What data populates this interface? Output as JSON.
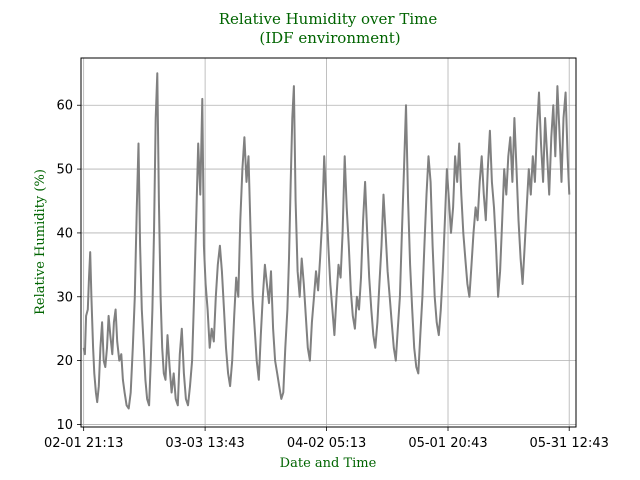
{
  "chart_data": {
    "type": "line",
    "title": "Relative Humidity over Time",
    "subtitle": "(IDF environment)",
    "xlabel": "Date and Time",
    "ylabel": "Relative Humidity (%)",
    "title_color": "#006400",
    "line_color": "#808080",
    "grid": true,
    "legend": "none",
    "x_ticks": [
      "02-01 21:13",
      "03-03 13:43",
      "04-02 05:13",
      "05-01 20:43",
      "05-31 12:43"
    ],
    "y_ticks": [
      "10",
      "20",
      "30",
      "40",
      "50",
      "60"
    ],
    "ylim": [
      9.6,
      67.4
    ],
    "xlim_days": [
      -0.65,
      120.35
    ],
    "x_tick_days": [
      0,
      29.6875,
      59.375,
      89.0625,
      118.6875
    ],
    "y_tick_values": [
      10,
      20,
      30,
      40,
      50,
      60
    ],
    "series": [
      {
        "points": [
          [
            0.0,
            22
          ],
          [
            0.3,
            21
          ],
          [
            0.6,
            27
          ],
          [
            1.0,
            28
          ],
          [
            1.3,
            33
          ],
          [
            1.6,
            37
          ],
          [
            1.9,
            30
          ],
          [
            2.3,
            22
          ],
          [
            2.6,
            18
          ],
          [
            3.0,
            15
          ],
          [
            3.3,
            13.5
          ],
          [
            3.7,
            16
          ],
          [
            4.1,
            22
          ],
          [
            4.5,
            26
          ],
          [
            4.9,
            20
          ],
          [
            5.3,
            19
          ],
          [
            5.7,
            22
          ],
          [
            6.1,
            27
          ],
          [
            6.5,
            24
          ],
          [
            7.0,
            21
          ],
          [
            7.4,
            26
          ],
          [
            7.8,
            28
          ],
          [
            8.2,
            23
          ],
          [
            8.7,
            20
          ],
          [
            9.2,
            21
          ],
          [
            9.6,
            17
          ],
          [
            10.0,
            15
          ],
          [
            10.5,
            13
          ],
          [
            11.0,
            12.5
          ],
          [
            11.5,
            15
          ],
          [
            12.0,
            22
          ],
          [
            12.5,
            30
          ],
          [
            13.0,
            44
          ],
          [
            13.4,
            54
          ],
          [
            13.8,
            38
          ],
          [
            14.2,
            28
          ],
          [
            14.7,
            22
          ],
          [
            15.1,
            17
          ],
          [
            15.5,
            14
          ],
          [
            16.0,
            13
          ],
          [
            16.4,
            20
          ],
          [
            16.8,
            28
          ],
          [
            17.2,
            40
          ],
          [
            17.6,
            58
          ],
          [
            18.0,
            65
          ],
          [
            18.4,
            45
          ],
          [
            18.8,
            30
          ],
          [
            19.2,
            22
          ],
          [
            19.6,
            18
          ],
          [
            20.0,
            17
          ],
          [
            20.5,
            24
          ],
          [
            21.0,
            19
          ],
          [
            21.5,
            15
          ],
          [
            22.0,
            18
          ],
          [
            22.5,
            14
          ],
          [
            23.0,
            13
          ],
          [
            23.5,
            21
          ],
          [
            24.0,
            25
          ],
          [
            24.5,
            18
          ],
          [
            25.0,
            14
          ],
          [
            25.5,
            13
          ],
          [
            26.0,
            16
          ],
          [
            26.5,
            20
          ],
          [
            27.0,
            30
          ],
          [
            27.5,
            42
          ],
          [
            28.0,
            54
          ],
          [
            28.5,
            46
          ],
          [
            29.0,
            61
          ],
          [
            29.4,
            38
          ],
          [
            29.8,
            32
          ],
          [
            30.3,
            28
          ],
          [
            30.8,
            22
          ],
          [
            31.3,
            25
          ],
          [
            31.8,
            23
          ],
          [
            32.3,
            30
          ],
          [
            32.8,
            35
          ],
          [
            33.3,
            38
          ],
          [
            33.8,
            34
          ],
          [
            34.3,
            28
          ],
          [
            34.8,
            22
          ],
          [
            35.3,
            18
          ],
          [
            35.8,
            16
          ],
          [
            36.3,
            20
          ],
          [
            36.8,
            27
          ],
          [
            37.3,
            33
          ],
          [
            37.8,
            30
          ],
          [
            38.3,
            42
          ],
          [
            38.8,
            50
          ],
          [
            39.3,
            55
          ],
          [
            39.8,
            48
          ],
          [
            40.3,
            52
          ],
          [
            40.8,
            40
          ],
          [
            41.3,
            30
          ],
          [
            41.8,
            25
          ],
          [
            42.3,
            20
          ],
          [
            42.8,
            17
          ],
          [
            43.3,
            24
          ],
          [
            43.8,
            30
          ],
          [
            44.3,
            35
          ],
          [
            44.8,
            32
          ],
          [
            45.3,
            29
          ],
          [
            45.8,
            34
          ],
          [
            46.3,
            25
          ],
          [
            46.8,
            20
          ],
          [
            47.3,
            18
          ],
          [
            47.8,
            16
          ],
          [
            48.3,
            14
          ],
          [
            48.8,
            15
          ],
          [
            49.3,
            22
          ],
          [
            49.8,
            28
          ],
          [
            50.2,
            36
          ],
          [
            50.6,
            48
          ],
          [
            51.0,
            58
          ],
          [
            51.4,
            63
          ],
          [
            51.8,
            45
          ],
          [
            52.3,
            34
          ],
          [
            52.8,
            30
          ],
          [
            53.3,
            36
          ],
          [
            53.8,
            32
          ],
          [
            54.3,
            27
          ],
          [
            54.8,
            22
          ],
          [
            55.3,
            20
          ],
          [
            55.8,
            26
          ],
          [
            56.3,
            30
          ],
          [
            56.8,
            34
          ],
          [
            57.3,
            31
          ],
          [
            57.8,
            36
          ],
          [
            58.3,
            42
          ],
          [
            58.8,
            52
          ],
          [
            59.3,
            45
          ],
          [
            59.8,
            38
          ],
          [
            60.3,
            32
          ],
          [
            60.8,
            28
          ],
          [
            61.3,
            24
          ],
          [
            61.8,
            30
          ],
          [
            62.3,
            35
          ],
          [
            62.8,
            33
          ],
          [
            63.3,
            40
          ],
          [
            63.8,
            52
          ],
          [
            64.3,
            44
          ],
          [
            64.8,
            38
          ],
          [
            65.3,
            31
          ],
          [
            65.8,
            27
          ],
          [
            66.3,
            25
          ],
          [
            66.8,
            30
          ],
          [
            67.3,
            28
          ],
          [
            67.8,
            33
          ],
          [
            68.3,
            42
          ],
          [
            68.8,
            48
          ],
          [
            69.3,
            40
          ],
          [
            69.8,
            33
          ],
          [
            70.3,
            28
          ],
          [
            70.8,
            24
          ],
          [
            71.3,
            22
          ],
          [
            71.8,
            26
          ],
          [
            72.3,
            32
          ],
          [
            72.8,
            38
          ],
          [
            73.3,
            46
          ],
          [
            73.8,
            40
          ],
          [
            74.3,
            34
          ],
          [
            74.8,
            30
          ],
          [
            75.3,
            26
          ],
          [
            75.8,
            22
          ],
          [
            76.3,
            20
          ],
          [
            76.8,
            25
          ],
          [
            77.3,
            30
          ],
          [
            77.8,
            40
          ],
          [
            78.3,
            50
          ],
          [
            78.8,
            60
          ],
          [
            79.3,
            45
          ],
          [
            79.8,
            35
          ],
          [
            80.3,
            28
          ],
          [
            80.8,
            22
          ],
          [
            81.3,
            19
          ],
          [
            81.8,
            18
          ],
          [
            82.3,
            24
          ],
          [
            82.8,
            30
          ],
          [
            83.3,
            38
          ],
          [
            83.8,
            46
          ],
          [
            84.3,
            52
          ],
          [
            84.8,
            48
          ],
          [
            85.3,
            38
          ],
          [
            85.8,
            30
          ],
          [
            86.3,
            26
          ],
          [
            86.8,
            24
          ],
          [
            87.3,
            28
          ],
          [
            87.8,
            34
          ],
          [
            88.3,
            42
          ],
          [
            88.8,
            50
          ],
          [
            89.3,
            45
          ],
          [
            89.8,
            40
          ],
          [
            90.3,
            44
          ],
          [
            90.8,
            52
          ],
          [
            91.3,
            48
          ],
          [
            91.8,
            54
          ],
          [
            92.3,
            46
          ],
          [
            92.8,
            40
          ],
          [
            93.3,
            36
          ],
          [
            93.8,
            32
          ],
          [
            94.3,
            30
          ],
          [
            94.8,
            35
          ],
          [
            95.3,
            40
          ],
          [
            95.8,
            44
          ],
          [
            96.3,
            42
          ],
          [
            96.8,
            48
          ],
          [
            97.3,
            52
          ],
          [
            97.8,
            46
          ],
          [
            98.3,
            42
          ],
          [
            98.8,
            50
          ],
          [
            99.3,
            56
          ],
          [
            99.8,
            48
          ],
          [
            100.3,
            44
          ],
          [
            100.8,
            38
          ],
          [
            101.3,
            30
          ],
          [
            101.8,
            34
          ],
          [
            102.3,
            42
          ],
          [
            102.8,
            50
          ],
          [
            103.3,
            46
          ],
          [
            103.8,
            52
          ],
          [
            104.3,
            55
          ],
          [
            104.8,
            48
          ],
          [
            105.3,
            58
          ],
          [
            105.8,
            50
          ],
          [
            106.3,
            42
          ],
          [
            106.8,
            36
          ],
          [
            107.3,
            32
          ],
          [
            107.8,
            38
          ],
          [
            108.3,
            44
          ],
          [
            108.8,
            50
          ],
          [
            109.3,
            46
          ],
          [
            109.8,
            52
          ],
          [
            110.3,
            48
          ],
          [
            110.8,
            56
          ],
          [
            111.3,
            62
          ],
          [
            111.8,
            54
          ],
          [
            112.3,
            48
          ],
          [
            112.8,
            58
          ],
          [
            113.3,
            52
          ],
          [
            113.8,
            46
          ],
          [
            114.3,
            55
          ],
          [
            114.8,
            60
          ],
          [
            115.3,
            52
          ],
          [
            115.8,
            63
          ],
          [
            116.3,
            56
          ],
          [
            116.8,
            48
          ],
          [
            117.3,
            58
          ],
          [
            117.8,
            62
          ],
          [
            118.3,
            52
          ],
          [
            118.7,
            46
          ]
        ]
      }
    ]
  }
}
